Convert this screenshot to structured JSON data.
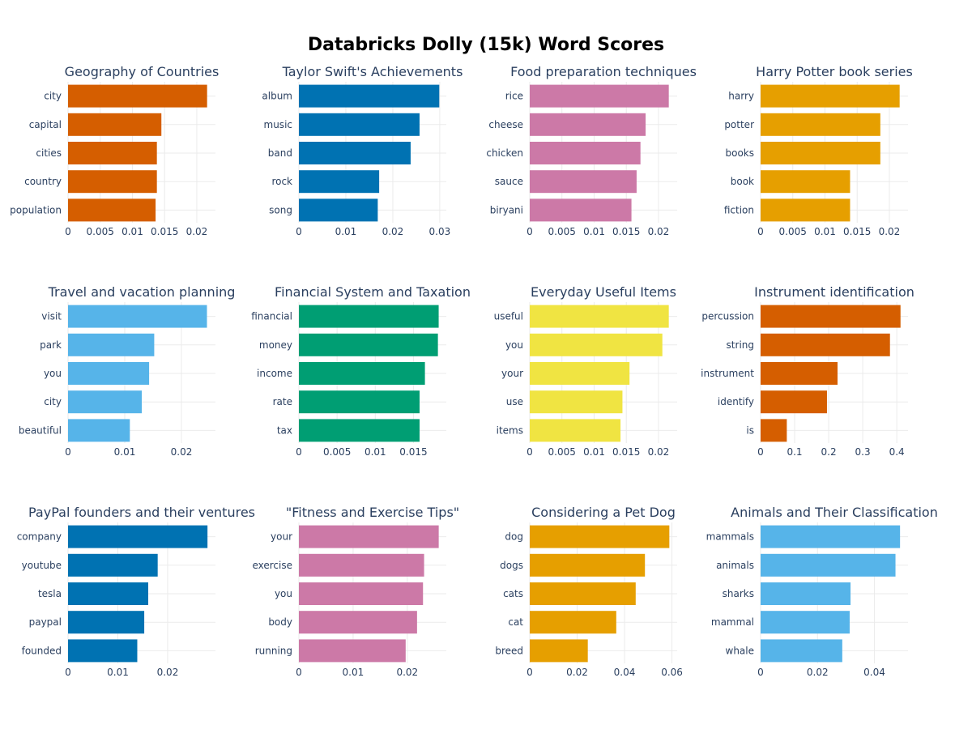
{
  "title": "Databricks Dolly (15k) Word Scores",
  "chart_data": [
    {
      "type": "bar",
      "orientation": "horizontal",
      "title": "Geography of Countries",
      "categories": [
        "city",
        "capital",
        "cities",
        "country",
        "population"
      ],
      "values": [
        0.0216,
        0.0145,
        0.0138,
        0.0138,
        0.0136
      ],
      "xlim": [
        0,
        0.0229
      ],
      "xticks": [
        0,
        0.005,
        0.01,
        0.015,
        0.02
      ],
      "xtick_labels": [
        "0",
        "0.005",
        "0.01",
        "0.015",
        "0.02"
      ],
      "color": "#D55E00"
    },
    {
      "type": "bar",
      "orientation": "horizontal",
      "title": "Taylor Swift's Achievements",
      "categories": [
        "album",
        "music",
        "band",
        "rock",
        "song"
      ],
      "values": [
        0.0299,
        0.0257,
        0.0238,
        0.0171,
        0.0168
      ],
      "xlim": [
        0,
        0.0314
      ],
      "xticks": [
        0,
        0.01,
        0.02,
        0.03
      ],
      "xtick_labels": [
        "0",
        "0.01",
        "0.02",
        "0.03"
      ],
      "color": "#0072B2"
    },
    {
      "type": "bar",
      "orientation": "horizontal",
      "title": "Food preparation techniques",
      "categories": [
        "rice",
        "cheese",
        "chicken",
        "sauce",
        "biryani"
      ],
      "values": [
        0.0216,
        0.018,
        0.0172,
        0.0166,
        0.0158
      ],
      "xlim": [
        0,
        0.0229
      ],
      "xticks": [
        0,
        0.005,
        0.01,
        0.015,
        0.02
      ],
      "xtick_labels": [
        "0",
        "0.005",
        "0.01",
        "0.015",
        "0.02"
      ],
      "color": "#CC79A7"
    },
    {
      "type": "bar",
      "orientation": "horizontal",
      "title": "Harry Potter book series",
      "categories": [
        "harry",
        "potter",
        "books",
        "book",
        "fiction"
      ],
      "values": [
        0.0216,
        0.0186,
        0.0186,
        0.0139,
        0.0139
      ],
      "xlim": [
        0,
        0.0229
      ],
      "xticks": [
        0,
        0.005,
        0.01,
        0.015,
        0.02
      ],
      "xtick_labels": [
        "0",
        "0.005",
        "0.01",
        "0.015",
        "0.02"
      ],
      "color": "#E69F00"
    },
    {
      "type": "bar",
      "orientation": "horizontal",
      "title": "Travel and vacation planning",
      "categories": [
        "visit",
        "park",
        "you",
        "city",
        "beautiful"
      ],
      "values": [
        0.0245,
        0.0152,
        0.0143,
        0.013,
        0.0109
      ],
      "xlim": [
        0,
        0.026
      ],
      "xticks": [
        0,
        0.01,
        0.02
      ],
      "xtick_labels": [
        "0",
        "0.01",
        "0.02"
      ],
      "color": "#56B4E9"
    },
    {
      "type": "bar",
      "orientation": "horizontal",
      "title": "Financial System and Taxation",
      "categories": [
        "financial",
        "money",
        "income",
        "rate",
        "tax"
      ],
      "values": [
        0.0183,
        0.0182,
        0.0165,
        0.0158,
        0.0158
      ],
      "xlim": [
        0,
        0.0193
      ],
      "xticks": [
        0,
        0.005,
        0.01,
        0.015
      ],
      "xtick_labels": [
        "0",
        "0.005",
        "0.01",
        "0.015"
      ],
      "color": "#009E73"
    },
    {
      "type": "bar",
      "orientation": "horizontal",
      "title": "Everyday Useful Items",
      "categories": [
        "useful",
        "you",
        "your",
        "use",
        "items"
      ],
      "values": [
        0.0216,
        0.0206,
        0.0155,
        0.0144,
        0.0141
      ],
      "xlim": [
        0,
        0.0229
      ],
      "xticks": [
        0,
        0.005,
        0.01,
        0.015,
        0.02
      ],
      "xtick_labels": [
        "0",
        "0.005",
        "0.01",
        "0.015",
        "0.02"
      ],
      "color": "#F0E442"
    },
    {
      "type": "bar",
      "orientation": "horizontal",
      "title": "Instrument identification",
      "categories": [
        "percussion",
        "string",
        "instrument",
        "identify",
        "is"
      ],
      "values": [
        0.411,
        0.38,
        0.226,
        0.195,
        0.077
      ],
      "xlim": [
        0,
        0.433
      ],
      "xticks": [
        0,
        0.1,
        0.2,
        0.3,
        0.4
      ],
      "xtick_labels": [
        "0",
        "0.1",
        "0.2",
        "0.3",
        "0.4"
      ],
      "color": "#D55E00"
    },
    {
      "type": "bar",
      "orientation": "horizontal",
      "title": "PayPal founders and their ventures",
      "categories": [
        "company",
        "youtube",
        "tesla",
        "paypal",
        "founded"
      ],
      "values": [
        0.028,
        0.018,
        0.0161,
        0.0153,
        0.0139
      ],
      "xlim": [
        0,
        0.0296
      ],
      "xticks": [
        0,
        0.01,
        0.02
      ],
      "xtick_labels": [
        "0",
        "0.01",
        "0.02"
      ],
      "color": "#0072B2"
    },
    {
      "type": "bar",
      "orientation": "horizontal",
      "title": "\"Fitness and Exercise Tips\"",
      "categories": [
        "your",
        "exercise",
        "you",
        "body",
        "running"
      ],
      "values": [
        0.0258,
        0.0231,
        0.0229,
        0.0218,
        0.0197
      ],
      "xlim": [
        0,
        0.0272
      ],
      "xticks": [
        0,
        0.01,
        0.02
      ],
      "xtick_labels": [
        "0",
        "0.01",
        "0.02"
      ],
      "color": "#CC79A7"
    },
    {
      "type": "bar",
      "orientation": "horizontal",
      "title": "Considering a Pet Dog",
      "categories": [
        "dog",
        "dogs",
        "cats",
        "cat",
        "breed"
      ],
      "values": [
        0.0589,
        0.0486,
        0.0447,
        0.0365,
        0.0245
      ],
      "xlim": [
        0,
        0.0622
      ],
      "xticks": [
        0,
        0.02,
        0.04,
        0.06
      ],
      "xtick_labels": [
        "0",
        "0.02",
        "0.04",
        "0.06"
      ],
      "color": "#E69F00"
    },
    {
      "type": "bar",
      "orientation": "horizontal",
      "title": "Animals and Their Classification",
      "categories": [
        "mammals",
        "animals",
        "sharks",
        "mammal",
        "whale"
      ],
      "values": [
        0.049,
        0.0474,
        0.0316,
        0.0313,
        0.0287
      ],
      "xlim": [
        0,
        0.0518
      ],
      "xticks": [
        0,
        0.02,
        0.04
      ],
      "xtick_labels": [
        "0",
        "0.02",
        "0.04"
      ],
      "color": "#56B4E9"
    }
  ]
}
